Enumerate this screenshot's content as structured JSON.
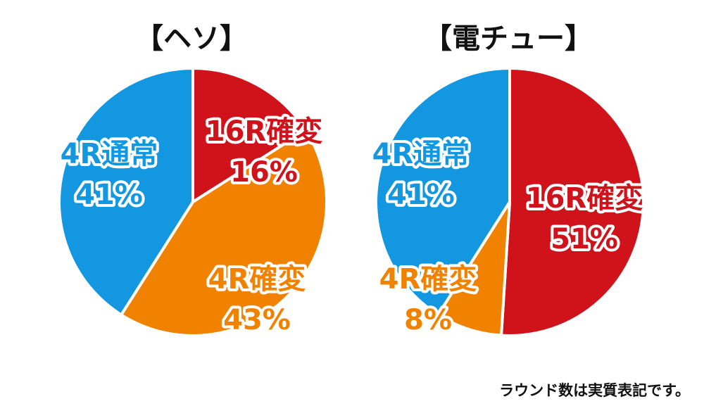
{
  "chart_data": [
    {
      "type": "pie",
      "title": "【ヘソ】",
      "slices": [
        {
          "label": "16R確変",
          "value": 16,
          "value_label": "16%",
          "color": "#d0121b"
        },
        {
          "label": "4R確変",
          "value": 43,
          "value_label": "43%",
          "color": "#f08200"
        },
        {
          "label": "4R通常",
          "value": 41,
          "value_label": "41%",
          "color": "#1297e0"
        }
      ]
    },
    {
      "type": "pie",
      "title": "【電チュー】",
      "slices": [
        {
          "label": "16R確変",
          "value": 51,
          "value_label": "51%",
          "color": "#d0121b"
        },
        {
          "label": "4R確変",
          "value": 8,
          "value_label": "8%",
          "color": "#f08200"
        },
        {
          "label": "4R通常",
          "value": 41,
          "value_label": "41%",
          "color": "#1297e0"
        }
      ]
    }
  ],
  "footnote": "ラウンド数は実質表記です。"
}
